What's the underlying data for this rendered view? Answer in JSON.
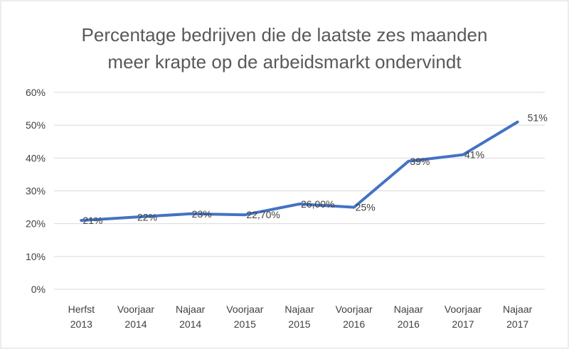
{
  "chart_data": {
    "type": "line",
    "title": [
      "Percentage bedrijven die de laatste zes maanden",
      "meer krapte op de arbeidsmarkt ondervindt"
    ],
    "categories": [
      [
        "Herfst",
        "2013"
      ],
      [
        "Voorjaar",
        "2014"
      ],
      [
        "Najaar",
        "2014"
      ],
      [
        "Voorjaar",
        "2015"
      ],
      [
        "Najaar",
        "2015"
      ],
      [
        "Voorjaar",
        "2016"
      ],
      [
        "Najaar",
        "2016"
      ],
      [
        "Voorjaar",
        "2017"
      ],
      [
        "Najaar",
        "2017"
      ]
    ],
    "values": [
      21,
      22,
      23,
      22.7,
      26,
      25,
      39,
      41,
      51
    ],
    "data_labels": [
      "21%",
      "22%",
      "23%",
      "22,70%",
      "26,00%",
      "25%",
      "39%",
      "41%",
      "51%"
    ],
    "ylim": [
      0,
      60
    ],
    "yticks": [
      "0%",
      "10%",
      "20%",
      "30%",
      "40%",
      "50%",
      "60%"
    ],
    "grid": true,
    "legend": "none",
    "line_color": "#4472c4",
    "grid_color": "#d9d9d9"
  }
}
